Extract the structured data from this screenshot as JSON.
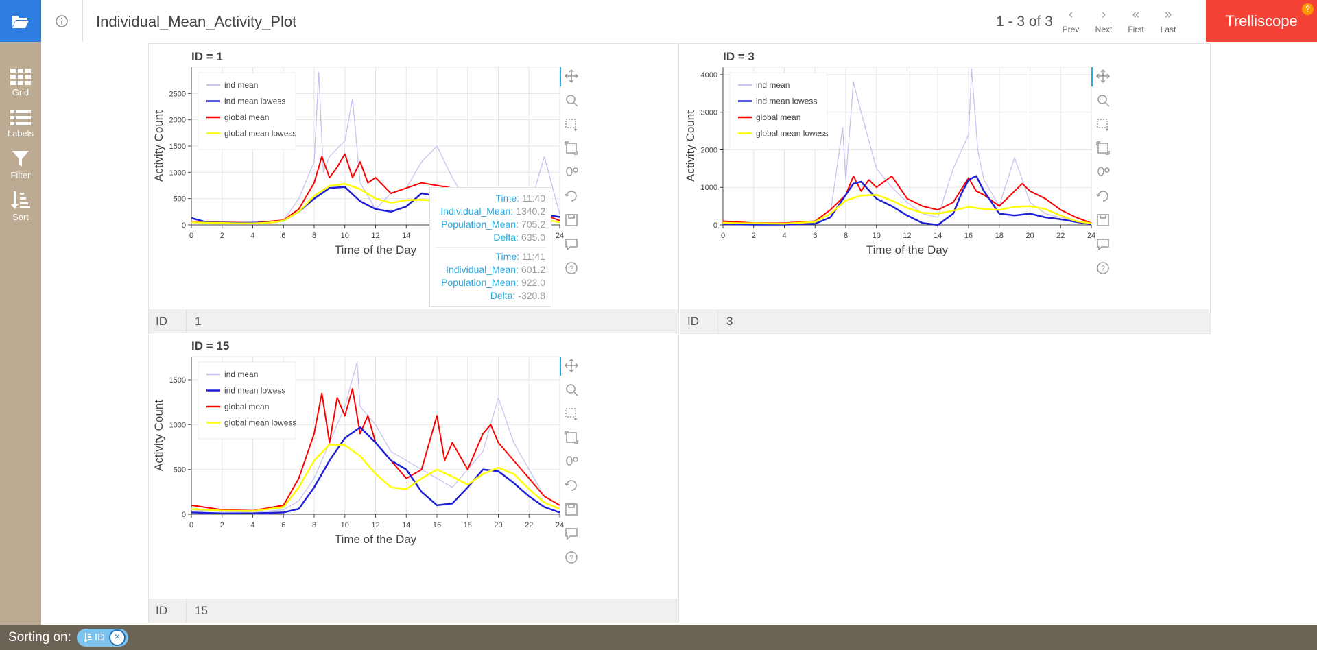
{
  "app": {
    "title": "Individual_Mean_Activity_Plot",
    "brand": "Trelliscope",
    "brand_help": "?"
  },
  "pager": {
    "text": "1 - 3 of 3",
    "prev": "Prev",
    "next": "Next",
    "first": "First",
    "last": "Last"
  },
  "sidebar": {
    "items": [
      {
        "label": "Grid",
        "icon": "grid-icon"
      },
      {
        "label": "Labels",
        "icon": "list-icon"
      },
      {
        "label": "Filter",
        "icon": "filter-icon"
      },
      {
        "label": "Sort",
        "icon": "sort-icon"
      }
    ]
  },
  "footer": {
    "label": "Sorting on:",
    "chip": "ID",
    "chip_close": "×"
  },
  "colors": {
    "ind_mean": "#c6c3f0",
    "ind_mean_lowess": "#1f1fd6",
    "global_mean": "#ff0000",
    "global_mean_lowess": "#ffff00",
    "accent": "#2e7de1",
    "brand": "#f44336"
  },
  "panels": [
    {
      "id_label": "ID",
      "id_value": "1"
    },
    {
      "id_label": "ID",
      "id_value": "3"
    },
    {
      "id_label": "ID",
      "id_value": "15"
    }
  ],
  "tooltip": [
    {
      "rows": [
        {
          "k": "Time:",
          "v": "11:40"
        },
        {
          "k": "Individual_Mean:",
          "v": "1340.2"
        },
        {
          "k": "Population_Mean:",
          "v": "705.2"
        },
        {
          "k": "Delta:",
          "v": "635.0"
        }
      ]
    },
    {
      "rows": [
        {
          "k": "Time:",
          "v": "11:41"
        },
        {
          "k": "Individual_Mean:",
          "v": "601.2"
        },
        {
          "k": "Population_Mean:",
          "v": "922.0"
        },
        {
          "k": "Delta:",
          "v": "-320.8"
        }
      ]
    }
  ],
  "chart_data": [
    {
      "type": "line",
      "title": "ID = 1",
      "xlabel": "Time of the Day",
      "ylabel": "Activity Count",
      "xlim": [
        0,
        24
      ],
      "ylim": [
        0,
        3000
      ],
      "xticks": [
        0,
        2,
        4,
        6,
        8,
        10,
        12,
        14,
        16,
        18,
        20,
        22,
        24
      ],
      "yticks": [
        0,
        500,
        1000,
        1500,
        2000,
        2500
      ],
      "legend": [
        "ind mean",
        "ind mean lowess",
        "global mean",
        "global mean lowess"
      ],
      "series": [
        {
          "name": "ind mean lowess",
          "x": [
            0,
            1,
            2,
            3,
            4,
            5,
            6,
            7,
            8,
            9,
            10,
            11,
            12,
            13,
            14,
            15,
            16,
            17,
            18,
            19,
            20,
            21,
            22,
            23,
            24
          ],
          "values": [
            130,
            50,
            40,
            35,
            40,
            45,
            80,
            250,
            500,
            700,
            720,
            450,
            300,
            250,
            350,
            600,
            550,
            450,
            420,
            460,
            500,
            420,
            280,
            200,
            150
          ]
        },
        {
          "name": "global mean lowess",
          "x": [
            0,
            1,
            2,
            3,
            4,
            5,
            6,
            7,
            8,
            9,
            10,
            11,
            12,
            13,
            14,
            15,
            16,
            17,
            18,
            19,
            20,
            21,
            22,
            23,
            24
          ],
          "values": [
            50,
            40,
            35,
            30,
            30,
            40,
            80,
            250,
            550,
            740,
            780,
            680,
            500,
            420,
            470,
            480,
            450,
            480,
            500,
            520,
            500,
            400,
            250,
            100,
            50
          ]
        },
        {
          "name": "global mean",
          "x": [
            0,
            2,
            4,
            6,
            7,
            8,
            8.5,
            9,
            9.5,
            10,
            10.5,
            11,
            11.5,
            12,
            13,
            14,
            15,
            16,
            17,
            18,
            19,
            20,
            21,
            22,
            23,
            24
          ],
          "values": [
            60,
            50,
            40,
            90,
            300,
            800,
            1300,
            900,
            1100,
            1350,
            900,
            1200,
            800,
            900,
            600,
            700,
            800,
            750,
            700,
            650,
            700,
            600,
            550,
            400,
            200,
            80
          ]
        },
        {
          "name": "ind mean",
          "x": [
            0,
            2,
            4,
            6,
            7,
            8,
            8.3,
            8.6,
            9,
            10,
            10.5,
            11,
            12,
            13,
            14,
            15,
            16,
            17,
            18,
            19,
            20,
            21,
            22,
            23,
            24
          ],
          "values": [
            60,
            40,
            30,
            80,
            500,
            1200,
            2900,
            1000,
            1300,
            1600,
            2400,
            800,
            300,
            600,
            700,
            1200,
            1500,
            900,
            400,
            600,
            700,
            500,
            300,
            1300,
            200
          ]
        }
      ]
    },
    {
      "type": "line",
      "title": "ID = 3",
      "xlabel": "Time of the Day",
      "ylabel": "Activity Count",
      "xlim": [
        0,
        24
      ],
      "ylim": [
        0,
        4200
      ],
      "xticks": [
        0,
        2,
        4,
        6,
        8,
        10,
        12,
        14,
        16,
        18,
        20,
        22,
        24
      ],
      "yticks": [
        0,
        1000,
        2000,
        3000,
        4000
      ],
      "legend": [
        "ind mean",
        "ind mean lowess",
        "global mean",
        "global mean lowess"
      ],
      "series": [
        {
          "name": "ind mean lowess",
          "x": [
            0,
            2,
            4,
            6,
            7,
            8,
            8.5,
            9,
            10,
            11,
            12,
            13,
            14,
            15,
            15.5,
            16,
            16.5,
            17,
            18,
            19,
            20,
            21,
            22,
            23,
            24
          ],
          "values": [
            20,
            10,
            10,
            30,
            200,
            800,
            1100,
            1150,
            700,
            500,
            250,
            50,
            0,
            300,
            800,
            1200,
            1300,
            900,
            300,
            250,
            300,
            200,
            150,
            80,
            20
          ]
        },
        {
          "name": "global mean lowess",
          "x": [
            0,
            2,
            4,
            6,
            7,
            8,
            9,
            10,
            11,
            12,
            13,
            14,
            15,
            16,
            17,
            18,
            19,
            20,
            21,
            22,
            23,
            24
          ],
          "values": [
            50,
            40,
            35,
            80,
            300,
            650,
            780,
            800,
            650,
            450,
            320,
            300,
            380,
            480,
            420,
            400,
            480,
            500,
            420,
            250,
            100,
            40
          ]
        },
        {
          "name": "global mean",
          "x": [
            0,
            2,
            4,
            6,
            7,
            8,
            8.5,
            9,
            9.5,
            10,
            11,
            12,
            13,
            14,
            15,
            16,
            16.5,
            17,
            18,
            19,
            19.5,
            20,
            21,
            22,
            23,
            24
          ],
          "values": [
            100,
            50,
            50,
            100,
            400,
            800,
            1300,
            900,
            1200,
            1000,
            1300,
            700,
            500,
            400,
            600,
            1250,
            900,
            800,
            500,
            900,
            1100,
            900,
            700,
            400,
            200,
            50
          ]
        },
        {
          "name": "ind mean",
          "x": [
            0,
            2,
            4,
            6,
            7,
            7.8,
            8,
            8.5,
            9,
            10,
            11,
            12,
            13,
            14,
            15,
            16,
            16.2,
            16.6,
            17,
            18,
            19,
            20,
            21,
            22,
            23,
            24
          ],
          "values": [
            50,
            20,
            10,
            50,
            300,
            2600,
            1200,
            3800,
            3000,
            1500,
            1000,
            600,
            300,
            200,
            1500,
            2400,
            4150,
            2000,
            1200,
            500,
            1800,
            600,
            300,
            200,
            100,
            50
          ]
        }
      ]
    },
    {
      "type": "line",
      "title": "ID = 15",
      "xlabel": "Time of the Day",
      "ylabel": "Activity Count",
      "xlim": [
        0,
        24
      ],
      "ylim": [
        0,
        1760
      ],
      "xticks": [
        0,
        2,
        4,
        6,
        8,
        10,
        12,
        14,
        16,
        18,
        20,
        22,
        24
      ],
      "yticks": [
        0,
        500,
        1000,
        1500
      ],
      "legend": [
        "ind mean",
        "ind mean lowess",
        "global mean",
        "global mean lowess"
      ],
      "series": [
        {
          "name": "ind mean lowess",
          "x": [
            0,
            2,
            4,
            6,
            7,
            8,
            9,
            10,
            11,
            12,
            13,
            14,
            15,
            16,
            17,
            18,
            19,
            20,
            21,
            22,
            23,
            24
          ],
          "values": [
            20,
            10,
            10,
            20,
            60,
            300,
            600,
            850,
            970,
            800,
            600,
            500,
            250,
            100,
            120,
            300,
            500,
            480,
            350,
            200,
            80,
            20
          ]
        },
        {
          "name": "global mean lowess",
          "x": [
            0,
            2,
            4,
            6,
            7,
            8,
            9,
            10,
            11,
            12,
            13,
            14,
            15,
            16,
            17,
            18,
            19,
            20,
            21,
            22,
            23,
            24
          ],
          "values": [
            60,
            40,
            35,
            80,
            300,
            600,
            780,
            770,
            650,
            450,
            300,
            280,
            400,
            500,
            420,
            330,
            450,
            520,
            450,
            280,
            130,
            60
          ]
        },
        {
          "name": "global mean",
          "x": [
            0,
            2,
            4,
            6,
            7,
            8,
            8.5,
            9,
            9.5,
            10,
            10.5,
            11,
            11.5,
            12,
            13,
            14,
            15,
            16,
            16.5,
            17,
            18,
            19,
            19.5,
            20,
            21,
            22,
            23,
            24
          ],
          "values": [
            100,
            50,
            40,
            100,
            400,
            900,
            1350,
            800,
            1300,
            1100,
            1400,
            900,
            1100,
            800,
            600,
            400,
            500,
            1100,
            600,
            800,
            500,
            900,
            1000,
            800,
            600,
            400,
            200,
            100
          ]
        },
        {
          "name": "ind mean",
          "x": [
            0,
            2,
            4,
            6,
            7,
            8,
            9,
            10,
            10.8,
            11,
            12,
            13,
            14,
            15,
            16,
            17,
            18,
            19,
            20,
            21,
            22,
            23,
            24
          ],
          "values": [
            50,
            30,
            20,
            50,
            150,
            400,
            800,
            1200,
            1700,
            1200,
            1000,
            700,
            600,
            500,
            400,
            300,
            500,
            700,
            1300,
            800,
            500,
            200,
            100
          ]
        }
      ]
    }
  ]
}
